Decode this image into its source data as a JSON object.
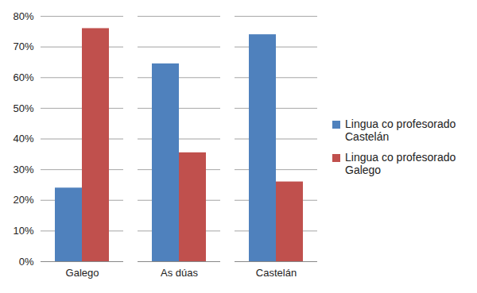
{
  "chart_data": {
    "type": "bar",
    "categories": [
      "Galego",
      "As dúas",
      "Castelán"
    ],
    "series": [
      {
        "name": "Lingua co profesorado Castelán",
        "color": "#4f81bd",
        "values": [
          24,
          64.5,
          74
        ]
      },
      {
        "name": "Lingua co profesorado Galego",
        "color": "#c0504d",
        "values": [
          76,
          35.5,
          26
        ]
      }
    ],
    "ylim": [
      0,
      80
    ],
    "yticks": [
      {
        "value": 0,
        "label": "0%"
      },
      {
        "value": 10,
        "label": "10%"
      },
      {
        "value": 20,
        "label": "20%"
      },
      {
        "value": 30,
        "label": "30%"
      },
      {
        "value": 40,
        "label": "40%"
      },
      {
        "value": 50,
        "label": "50%"
      },
      {
        "value": 60,
        "label": "60%"
      },
      {
        "value": 70,
        "label": "70%"
      },
      {
        "value": 80,
        "label": "80%"
      }
    ],
    "grid": true,
    "legend": "right"
  }
}
